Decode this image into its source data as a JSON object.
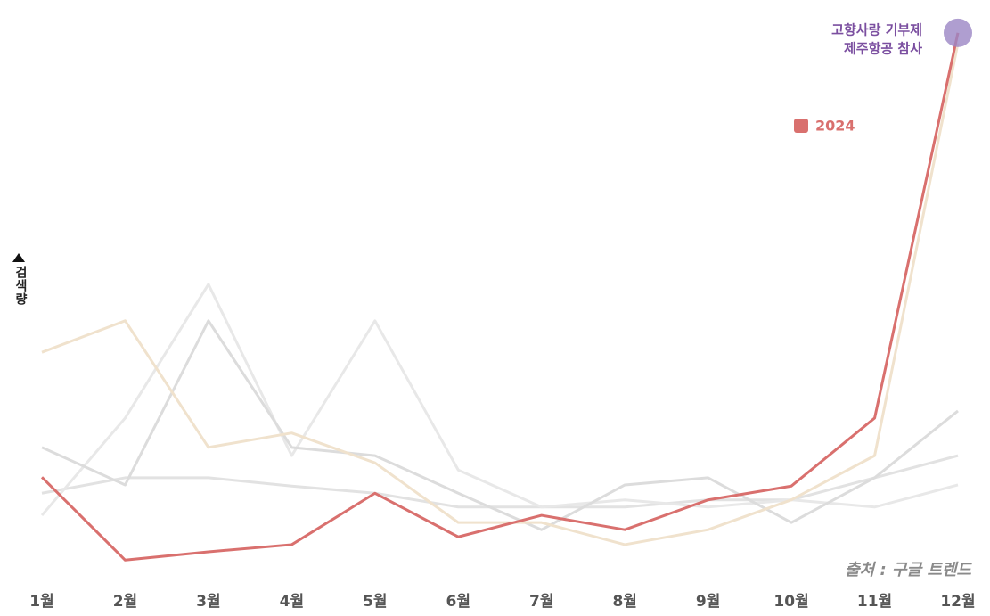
{
  "chart_data": {
    "type": "line",
    "categories": [
      "1월",
      "2월",
      "3월",
      "4월",
      "5월",
      "6월",
      "7월",
      "8월",
      "9월",
      "10월",
      "11월",
      "12월"
    ],
    "series": [
      {
        "name": "2024",
        "color": "#d9706e",
        "values": [
          18.5,
          3.5,
          5,
          6.3,
          15.6,
          7.7,
          11.6,
          9,
          14.4,
          16.9,
          29.2,
          98.9
        ]
      },
      {
        "color": "#f0e2cd",
        "values": [
          41.1,
          46.8,
          23.9,
          26.5,
          21.1,
          10.3,
          10.3,
          6.3,
          9,
          14.4,
          22.4,
          97
        ]
      },
      {
        "color": "#dcdcdc",
        "values": [
          23.9,
          17.1,
          46.8,
          23.9,
          22.4,
          15.6,
          9,
          17.1,
          18.4,
          10.3,
          18.4,
          30.5
        ]
      },
      {
        "color": "#e8e8e8",
        "values": [
          11.6,
          29.2,
          53.4,
          22.4,
          46.8,
          19.8,
          13.1,
          14.4,
          13.1,
          14.4,
          13.1,
          17.1
        ]
      },
      {
        "color": "#e2e2e2",
        "values": [
          15.6,
          18.4,
          18.4,
          16.9,
          15.6,
          13.1,
          13.1,
          13.1,
          14.4,
          14.4,
          18.4,
          22.4
        ]
      }
    ],
    "ylim": [
      0,
      100
    ],
    "y_label": "검색량",
    "annotation": {
      "lines": [
        "고향사랑 기부제",
        "제주항공 참사"
      ],
      "series": 0,
      "index": 11,
      "color": "#9b86c4",
      "text_color": "#7b4fa0"
    },
    "source": "출처 : 구글 트렌드"
  }
}
